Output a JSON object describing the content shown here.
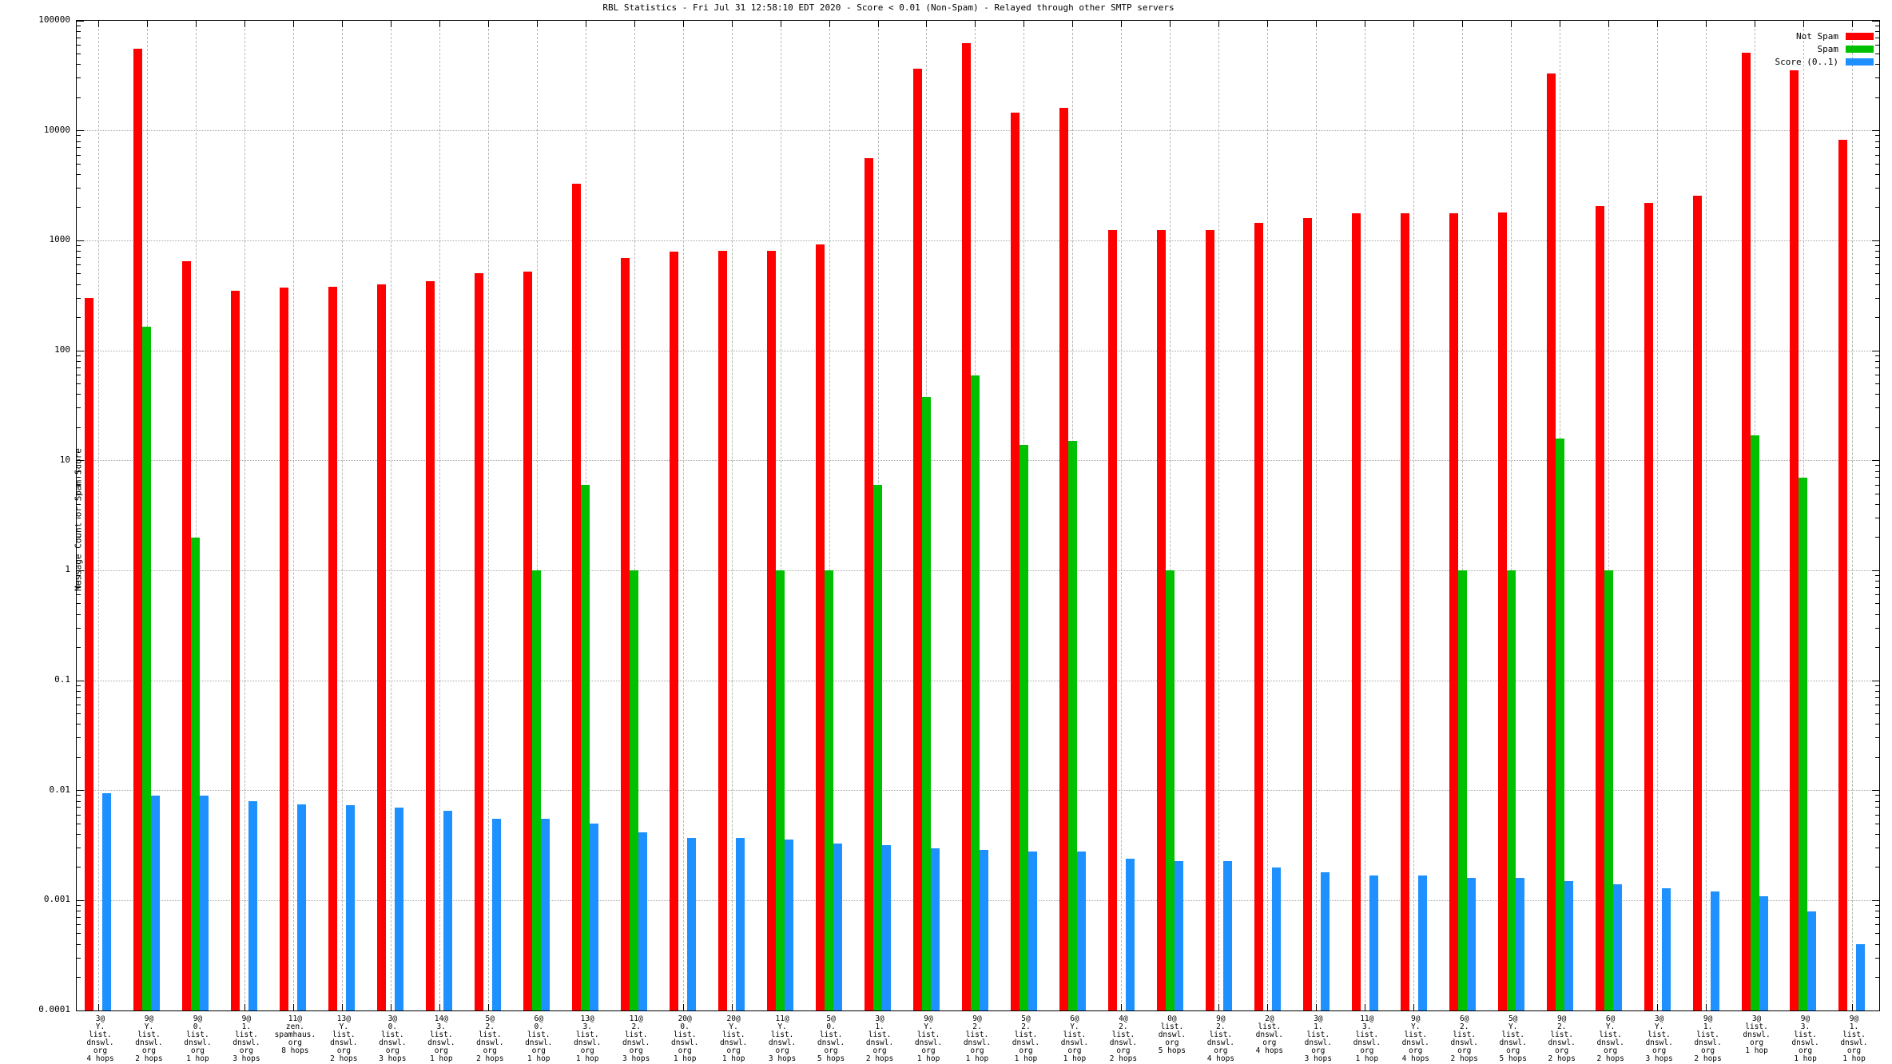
{
  "title": "RBL Statistics - Fri Jul 31 12:58:10 EDT 2020 - Score < 0.01 (Non-Spam) - Relayed through other SMTP servers",
  "y_axis": {
    "label": "Message Count or Spam Score",
    "ticks": [
      "100000",
      "10000",
      "1000",
      "100",
      "10",
      "1",
      "0.1",
      "0.01",
      "0.001",
      "0.0001"
    ],
    "tick_exponents": [
      5,
      4,
      3,
      2,
      1,
      0,
      -1,
      -2,
      -3,
      -4
    ]
  },
  "legend": {
    "items": [
      {
        "label": "Not Spam",
        "color": "#ff0000"
      },
      {
        "label": "Spam",
        "color": "#00c000"
      },
      {
        "label": "Score (0..1)",
        "color": "#1e90ff"
      }
    ]
  },
  "colors": {
    "not_spam": "#ff0000",
    "spam": "#00c000",
    "score": "#1e90ff",
    "grid": "#a8a8a8",
    "border": "#000000"
  },
  "chart_data": {
    "type": "bar",
    "yscale": "log",
    "ylim": [
      0.0001,
      100000
    ],
    "grid": true,
    "legend_position": "top-right",
    "series_names": [
      "Not Spam",
      "Spam",
      "Score (0..1)"
    ],
    "groups": [
      {
        "label_lines": [
          "3@",
          "Y.",
          "list.",
          "dnswl.",
          "org",
          "4 hops"
        ],
        "not_spam": 300,
        "spam": null,
        "score": 0.0095
      },
      {
        "label_lines": [
          "9@",
          "Y.",
          "list.",
          "dnswl.",
          "org",
          "2 hops"
        ],
        "not_spam": 56000,
        "spam": 165,
        "score": 0.009
      },
      {
        "label_lines": [
          "9@",
          "0.",
          "list.",
          "dnswl.",
          "org",
          "1 hop"
        ],
        "not_spam": 650,
        "spam": 2,
        "score": 0.009
      },
      {
        "label_lines": [
          "9@",
          "1.",
          "list.",
          "dnswl.",
          "org",
          "3 hops"
        ],
        "not_spam": 350,
        "spam": null,
        "score": 0.008
      },
      {
        "label_lines": [
          "11@",
          "zen.",
          "spamhaus.",
          "org",
          "8 hops"
        ],
        "not_spam": 375,
        "spam": null,
        "score": 0.0075
      },
      {
        "label_lines": [
          "13@",
          "Y.",
          "list.",
          "dnswl.",
          "org",
          "2 hops"
        ],
        "not_spam": 380,
        "spam": null,
        "score": 0.0073
      },
      {
        "label_lines": [
          "3@",
          "0.",
          "list.",
          "dnswl.",
          "org",
          "3 hops"
        ],
        "not_spam": 400,
        "spam": null,
        "score": 0.007
      },
      {
        "label_lines": [
          "14@",
          "3.",
          "list.",
          "dnswl.",
          "org",
          "1 hop"
        ],
        "not_spam": 430,
        "spam": null,
        "score": 0.0065
      },
      {
        "label_lines": [
          "5@",
          "2.",
          "list.",
          "dnswl.",
          "org",
          "2 hops"
        ],
        "not_spam": 510,
        "spam": null,
        "score": 0.0055
      },
      {
        "label_lines": [
          "6@",
          "0.",
          "list.",
          "dnswl.",
          "org",
          "1 hop"
        ],
        "not_spam": 520,
        "spam": 1,
        "score": 0.0055
      },
      {
        "label_lines": [
          "13@",
          "3.",
          "list.",
          "dnswl.",
          "org",
          "1 hop"
        ],
        "not_spam": 3300,
        "spam": 6,
        "score": 0.005
      },
      {
        "label_lines": [
          "11@",
          "2.",
          "list.",
          "dnswl.",
          "org",
          "3 hops"
        ],
        "not_spam": 700,
        "spam": 1,
        "score": 0.0042
      },
      {
        "label_lines": [
          "20@",
          "0.",
          "list.",
          "dnswl.",
          "org",
          "1 hop"
        ],
        "not_spam": 800,
        "spam": null,
        "score": 0.0037
      },
      {
        "label_lines": [
          "20@",
          "Y.",
          "list.",
          "dnswl.",
          "org",
          "1 hop"
        ],
        "not_spam": 810,
        "spam": null,
        "score": 0.0037
      },
      {
        "label_lines": [
          "11@",
          "Y.",
          "list.",
          "dnswl.",
          "org",
          "3 hops"
        ],
        "not_spam": 810,
        "spam": 1,
        "score": 0.0036
      },
      {
        "label_lines": [
          "5@",
          "0.",
          "list.",
          "dnswl.",
          "org",
          "5 hops"
        ],
        "not_spam": 920,
        "spam": 1,
        "score": 0.0033
      },
      {
        "label_lines": [
          "3@",
          "1.",
          "list.",
          "dnswl.",
          "org",
          "2 hops"
        ],
        "not_spam": 5600,
        "spam": 6,
        "score": 0.0032
      },
      {
        "label_lines": [
          "9@",
          "Y.",
          "list.",
          "dnswl.",
          "org",
          "1 hop"
        ],
        "not_spam": 36500,
        "spam": 38,
        "score": 0.003
      },
      {
        "label_lines": [
          "9@",
          "2.",
          "list.",
          "dnswl.",
          "org",
          "1 hop"
        ],
        "not_spam": 63000,
        "spam": 60,
        "score": 0.0029
      },
      {
        "label_lines": [
          "5@",
          "2.",
          "list.",
          "dnswl.",
          "org",
          "1 hop"
        ],
        "not_spam": 14600,
        "spam": 14,
        "score": 0.0028
      },
      {
        "label_lines": [
          "6@",
          "Y.",
          "list.",
          "dnswl.",
          "org",
          "1 hop"
        ],
        "not_spam": 16200,
        "spam": 15,
        "score": 0.0028
      },
      {
        "label_lines": [
          "4@",
          "2.",
          "list.",
          "dnswl.",
          "org",
          "2 hops"
        ],
        "not_spam": 1240,
        "spam": null,
        "score": 0.0024
      },
      {
        "label_lines": [
          "0@",
          "list.",
          "dnswl.",
          "org",
          "5 hops"
        ],
        "not_spam": 1250,
        "spam": 1,
        "score": 0.0023
      },
      {
        "label_lines": [
          "9@",
          "2.",
          "list.",
          "dnswl.",
          "org",
          "4 hops"
        ],
        "not_spam": 1260,
        "spam": null,
        "score": 0.0023
      },
      {
        "label_lines": [
          "2@",
          "list.",
          "dnswl.",
          "org",
          "4 hops"
        ],
        "not_spam": 1450,
        "spam": null,
        "score": 0.002
      },
      {
        "label_lines": [
          "3@",
          "1.",
          "list.",
          "dnswl.",
          "org",
          "3 hops"
        ],
        "not_spam": 1600,
        "spam": null,
        "score": 0.0018
      },
      {
        "label_lines": [
          "11@",
          "3.",
          "list.",
          "dnswl.",
          "org",
          "1 hop"
        ],
        "not_spam": 1780,
        "spam": null,
        "score": 0.0017
      },
      {
        "label_lines": [
          "9@",
          "Y.",
          "list.",
          "dnswl.",
          "org",
          "4 hops"
        ],
        "not_spam": 1790,
        "spam": null,
        "score": 0.0017
      },
      {
        "label_lines": [
          "6@",
          "2.",
          "list.",
          "dnswl.",
          "org",
          "2 hops"
        ],
        "not_spam": 1790,
        "spam": 1,
        "score": 0.0016
      },
      {
        "label_lines": [
          "5@",
          "Y.",
          "list.",
          "dnswl.",
          "org",
          "5 hops"
        ],
        "not_spam": 1800,
        "spam": 1,
        "score": 0.0016
      },
      {
        "label_lines": [
          "9@",
          "2.",
          "list.",
          "dnswl.",
          "org",
          "2 hops"
        ],
        "not_spam": 33000,
        "spam": 16,
        "score": 0.0015
      },
      {
        "label_lines": [
          "6@",
          "Y.",
          "list.",
          "dnswl.",
          "org",
          "2 hops"
        ],
        "not_spam": 2050,
        "spam": 1,
        "score": 0.0014
      },
      {
        "label_lines": [
          "3@",
          "Y.",
          "list.",
          "dnswl.",
          "org",
          "3 hops"
        ],
        "not_spam": 2200,
        "spam": null,
        "score": 0.0013
      },
      {
        "label_lines": [
          "9@",
          "1.",
          "list.",
          "dnswl.",
          "org",
          "2 hops"
        ],
        "not_spam": 2560,
        "spam": null,
        "score": 0.0012
      },
      {
        "label_lines": [
          "3@",
          "list.",
          "dnswl.",
          "org",
          "1 hop"
        ],
        "not_spam": 51000,
        "spam": 17,
        "score": 0.0011
      },
      {
        "label_lines": [
          "9@",
          "3.",
          "list.",
          "dnswl.",
          "org",
          "1 hop"
        ],
        "not_spam": 35500,
        "spam": 7,
        "score": 0.0008
      },
      {
        "label_lines": [
          "9@",
          "1.",
          "list.",
          "dnswl.",
          "org",
          "1 hop"
        ],
        "not_spam": 8300,
        "spam": null,
        "score": 0.0004
      }
    ]
  }
}
